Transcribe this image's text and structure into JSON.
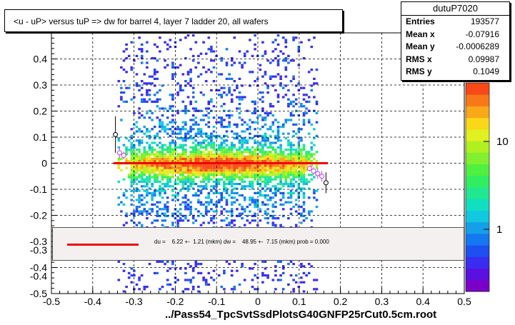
{
  "title": "<u - uP>       versus  tuP =>  dw for barrel 4, layer 7 ladder 20, all wafers",
  "stats": {
    "name": "dutuP7020",
    "rows": [
      {
        "key": "Entries",
        "value": "193577"
      },
      {
        "key": "Mean x",
        "value": "-0.07916"
      },
      {
        "key": "Mean y",
        "value": "-0.0006289"
      },
      {
        "key": "RMS x",
        "value": "0.09987"
      },
      {
        "key": "RMS y",
        "value": "0.1049"
      }
    ]
  },
  "legend": {
    "text": "du =    6.22 +-  1.21 (mkm) dw =    48.95 +-  7.15 (mkm) prob = 0.000",
    "line_color": "#ee0000"
  },
  "footer": "../Pass54_TpcSvtSsdPlotsG40GNFP25rCut0.5cm.root",
  "colorbar": {
    "labels": [
      "1",
      "10"
    ],
    "exponent": "2",
    "colors": [
      "#7a00c8",
      "#5a10e0",
      "#3a2cf0",
      "#1e50f0",
      "#1478f0",
      "#14a0e8",
      "#10c8e0",
      "#10e0c0",
      "#20e890",
      "#30ee60",
      "#50f040",
      "#80f030",
      "#b0f020",
      "#e0f020",
      "#f8d818",
      "#f8a818",
      "#f87818",
      "#f84818"
    ]
  },
  "chart_data": {
    "type": "heatmap",
    "xlim": [
      -0.5,
      0.5
    ],
    "ylim": [
      -0.5,
      0.5
    ],
    "x_ticks": [
      "-0.5",
      "-0.4",
      "-0.3",
      "-0.2",
      "-0.1",
      "0",
      "0.1",
      "0.2",
      "0.3",
      "0.4",
      "0.5"
    ],
    "y_ticks": [
      "-0.5",
      "-0.4",
      "-0.3",
      "-0.2",
      "-0.1",
      "0",
      "0.1",
      "0.2",
      "0.3",
      "0.4"
    ],
    "y_extra_ticks": [
      "-0.3",
      "-0.4"
    ],
    "grid": true,
    "occupied_x_range": [
      -0.33,
      0.13
    ],
    "fit_line": {
      "x": [
        -0.35,
        0.17
      ],
      "y": [
        0.0,
        0.0
      ]
    },
    "profile_points": [
      {
        "x": -0.345,
        "y": 0.11,
        "err": 0.07
      },
      {
        "x": -0.335,
        "y": 0.04,
        "err": 0.02
      },
      {
        "x": -0.325,
        "y": 0.03,
        "err": 0.015
      },
      {
        "x": 0.125,
        "y": -0.02,
        "err": 0.012
      },
      {
        "x": 0.135,
        "y": -0.03,
        "err": 0.015
      },
      {
        "x": 0.145,
        "y": -0.04,
        "err": 0.02
      },
      {
        "x": 0.155,
        "y": -0.05,
        "err": 0.02
      },
      {
        "x": 0.165,
        "y": -0.075,
        "err": 0.04
      }
    ]
  }
}
